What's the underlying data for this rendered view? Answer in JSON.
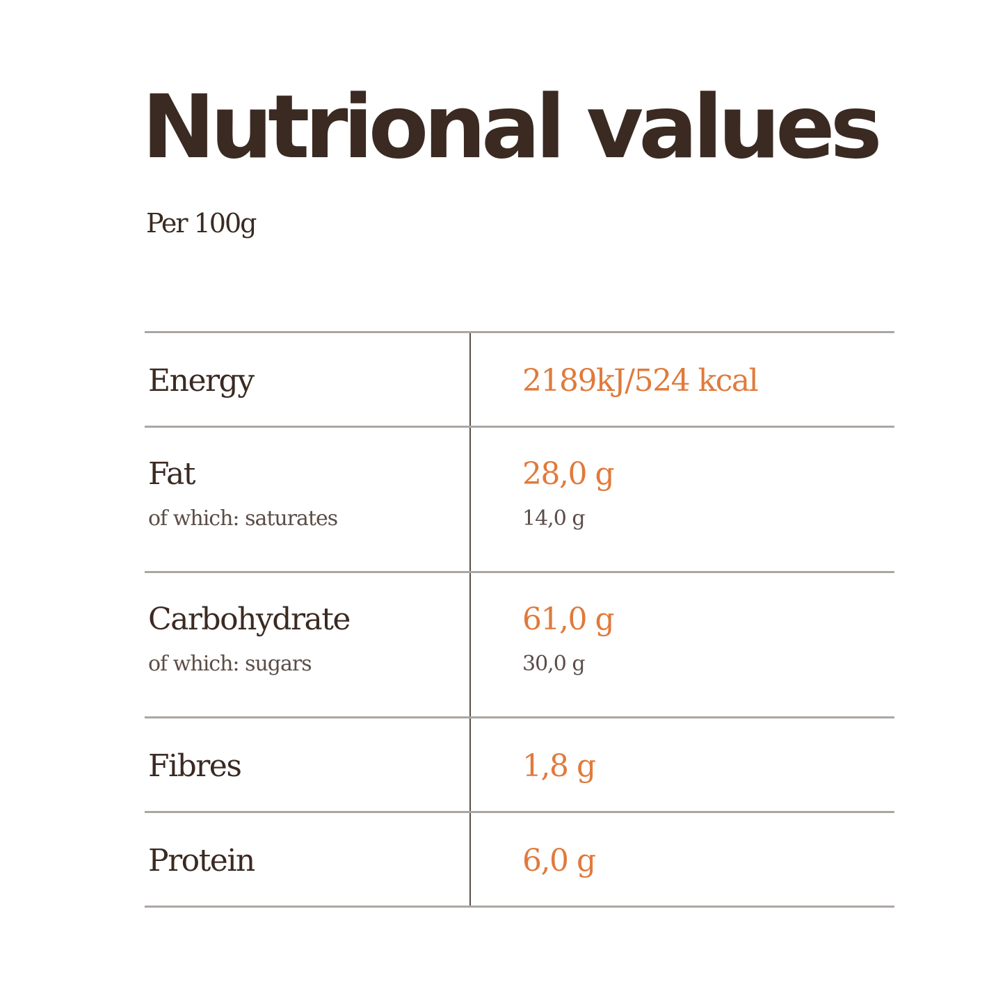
{
  "title": "Nutrional values",
  "subtitle": "Per 100g",
  "colors": {
    "heading": "#3a2a22",
    "value_accent": "#e07a3c",
    "sub_text": "#5a4d46",
    "rule": "#aca6a3"
  },
  "rows": [
    {
      "label": "Energy",
      "value": "2189kJ/524 kcal"
    },
    {
      "label": "Fat",
      "value": "28,0 g",
      "sub_label": "of which: saturates",
      "sub_value": "14,0 g"
    },
    {
      "label": "Carbohydrate",
      "value": "61,0 g",
      "sub_label": "of which: sugars",
      "sub_value": "30,0 g"
    },
    {
      "label": "Fibres",
      "value": "1,8 g"
    },
    {
      "label": "Protein",
      "value": "6,0 g"
    }
  ]
}
